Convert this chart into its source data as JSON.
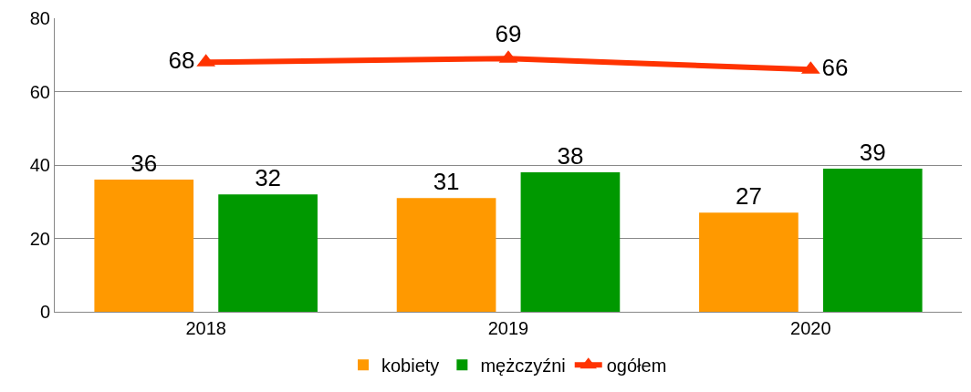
{
  "chart_data": {
    "type": "bar",
    "categories": [
      "2018",
      "2019",
      "2020"
    ],
    "series": [
      {
        "name": "kobiety",
        "color": "#ff9900",
        "values": [
          36,
          31,
          27
        ]
      },
      {
        "name": "mężczyźni",
        "color": "#009900",
        "values": [
          32,
          38,
          39
        ]
      },
      {
        "name": "ogółem",
        "color": "#ff3300",
        "type": "line",
        "values": [
          68,
          69,
          66
        ]
      }
    ],
    "ylim": [
      0,
      80
    ],
    "yticks": [
      0,
      20,
      40,
      60,
      80
    ],
    "grid": "y",
    "legend": "bottom",
    "marker": "triangle",
    "data_labels": true
  }
}
